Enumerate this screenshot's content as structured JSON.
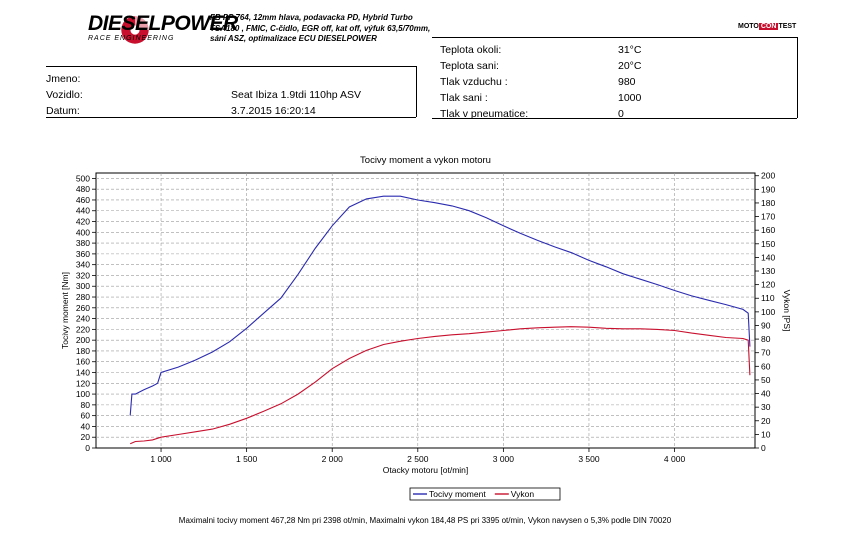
{
  "header": {
    "brand": "DIESELPOWER",
    "brand_sub": "RACE ENGINEERING",
    "spec_lines": [
      "FB PP 764, 12mm hlava, podavacka PD, Hybrid Turbo",
      "TSA180 , FMIC, C-čidlo, EGR off, kat off, výfuk 63,5/70mm,",
      "sání ASZ, optimalizace ECU DIESELPOWER"
    ],
    "badge_left": "MOTO",
    "badge_mid": "CON",
    "badge_right": "TEST"
  },
  "info_left": {
    "rows": [
      {
        "label": "Jmeno:",
        "value": ""
      },
      {
        "label": "Vozidlo:",
        "value": "Seat Ibiza 1.9tdi 110hp ASV"
      },
      {
        "label": "Datum:",
        "value": "3.7.2015 16:20:14"
      }
    ]
  },
  "info_right": {
    "rows": [
      {
        "label": "Teplota okoli:",
        "value": "31°C"
      },
      {
        "label": "Teplota sani:",
        "value": "20°C"
      },
      {
        "label": "Tlak vzduchu :",
        "value": "980"
      },
      {
        "label": "Tlak sani :",
        "value": "1000"
      },
      {
        "label": "Tlak v pneumatice:",
        "value": "0"
      }
    ]
  },
  "chart_data": {
    "type": "line",
    "title": "Tocivy moment a vykon motoru",
    "xlabel": "Otacky motoru [ot/min]",
    "ylabel_left": "Tocivy moment [Nm]",
    "ylabel_right": "Vykon [PS]",
    "xlim": [
      620,
      4470
    ],
    "ylim_left": [
      0,
      510
    ],
    "ylim_right": [
      0,
      202
    ],
    "x_ticks": [
      1000,
      1500,
      2000,
      2500,
      3000,
      3500,
      4000
    ],
    "x_tick_labels": [
      "1 000",
      "1 500",
      "2 000",
      "2 500",
      "3 000",
      "3 500",
      "4 000"
    ],
    "y_left_ticks": [
      0,
      20,
      40,
      60,
      80,
      100,
      120,
      140,
      160,
      180,
      200,
      220,
      240,
      260,
      280,
      300,
      320,
      340,
      360,
      380,
      400,
      420,
      440,
      460,
      480,
      500
    ],
    "y_right_ticks": [
      0,
      10,
      20,
      30,
      40,
      50,
      60,
      70,
      80,
      90,
      100,
      110,
      120,
      130,
      140,
      150,
      160,
      170,
      180,
      190,
      200
    ],
    "grid": true,
    "legend_position": "bottom-center",
    "series": [
      {
        "name": "Tocivy moment",
        "axis": "left",
        "color": "#2b2bb0",
        "x": [
          820,
          830,
          850,
          900,
          950,
          980,
          990,
          1000,
          1100,
          1200,
          1300,
          1400,
          1500,
          1600,
          1700,
          1800,
          1900,
          2000,
          2100,
          2200,
          2300,
          2398,
          2500,
          2600,
          2700,
          2800,
          2900,
          3000,
          3100,
          3200,
          3300,
          3400,
          3500,
          3600,
          3700,
          3800,
          3900,
          4000,
          4100,
          4200,
          4300,
          4400,
          4430,
          4440
        ],
        "y": [
          60,
          100,
          100,
          108,
          115,
          120,
          130,
          140,
          150,
          163,
          178,
          197,
          222,
          250,
          278,
          322,
          370,
          412,
          447,
          462,
          467,
          467,
          460,
          455,
          449,
          440,
          427,
          412,
          398,
          385,
          373,
          362,
          348,
          336,
          323,
          313,
          303,
          292,
          282,
          274,
          266,
          257,
          250,
          188
        ]
      },
      {
        "name": "Vykon",
        "axis": "left_scaled_to_right",
        "color": "#c8102e",
        "x": [
          820,
          850,
          900,
          950,
          1000,
          1100,
          1200,
          1300,
          1400,
          1500,
          1600,
          1700,
          1800,
          1900,
          2000,
          2100,
          2200,
          2300,
          2400,
          2500,
          2600,
          2700,
          2800,
          2900,
          3000,
          3100,
          3200,
          3300,
          3395,
          3500,
          3600,
          3700,
          3800,
          3900,
          4000,
          4100,
          4200,
          4300,
          4400,
          4430,
          4440
        ],
        "y": [
          8,
          12,
          13,
          15,
          20,
          25,
          30,
          35,
          44,
          55,
          68,
          82,
          100,
          122,
          147,
          166,
          181,
          192,
          198,
          203,
          207,
          210,
          212,
          215,
          218,
          221,
          223,
          224,
          225,
          224,
          222,
          221,
          221,
          220,
          218,
          213,
          209,
          205,
          203,
          200,
          135
        ]
      }
    ]
  },
  "footer": "Maximalni tocivy moment 467,28 Nm pri 2398 ot/min,  Maximalni vykon 184,48 PS pri 3395 ot/min,  Vykon navysen o 5,3% podle DIN 70020"
}
